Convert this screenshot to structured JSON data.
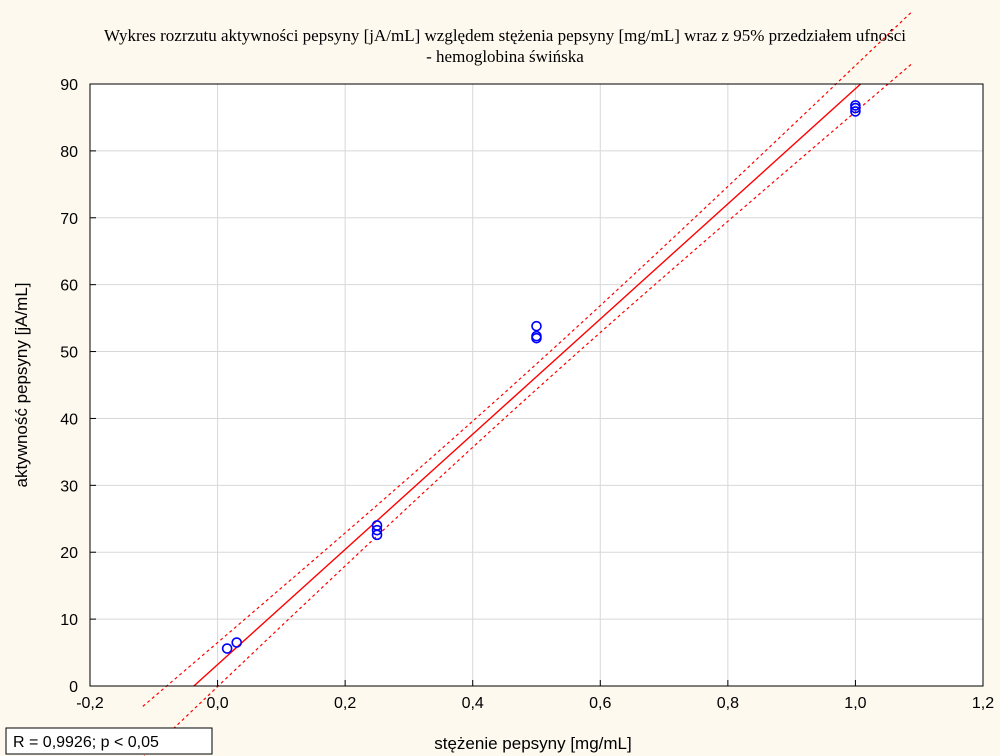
{
  "chart_data": {
    "type": "scatter",
    "title_line1": "Wykres rozrzutu aktywności pepsyny [jA/mL] względem stężenia pepsyny [mg/mL] wraz z 95% przedziałem ufności",
    "title_line2": "- hemoglobina świńska",
    "xlabel": "stężenie pepsyny [mg/mL]",
    "ylabel": "aktywność pepsyny [jA/mL]",
    "xlim": [
      -0.2,
      1.2
    ],
    "ylim": [
      0,
      90
    ],
    "x_ticks": [
      "-0,2",
      "0,0",
      "0,2",
      "0,4",
      "0,6",
      "0,8",
      "1,0",
      "1,2"
    ],
    "y_ticks": [
      "0",
      "10",
      "20",
      "30",
      "40",
      "50",
      "60",
      "70",
      "80",
      "90"
    ],
    "grid": true,
    "annotation": "R = 0,9926; p < 0,05",
    "points": [
      {
        "x": 0.015,
        "y": 5.6
      },
      {
        "x": 0.03,
        "y": 6.5
      },
      {
        "x": 0.25,
        "y": 22.6
      },
      {
        "x": 0.25,
        "y": 23.3
      },
      {
        "x": 0.25,
        "y": 24.0
      },
      {
        "x": 0.5,
        "y": 52.0
      },
      {
        "x": 0.5,
        "y": 52.3
      },
      {
        "x": 0.5,
        "y": 53.8
      },
      {
        "x": 1.0,
        "y": 85.9
      },
      {
        "x": 1.0,
        "y": 86.4
      },
      {
        "x": 1.0,
        "y": 86.8
      }
    ],
    "regression": {
      "intercept": 3.2,
      "slope": 86.1
    },
    "confidence_band": {
      "half_width_at_center": 1.9,
      "half_width_at_ends": 3.5
    },
    "colors": {
      "points": "#0000ff",
      "fit_line": "#ff0000",
      "grid": "#d8d8d8",
      "background": "#fdf9ef",
      "plot_area": "#ffffff"
    }
  }
}
